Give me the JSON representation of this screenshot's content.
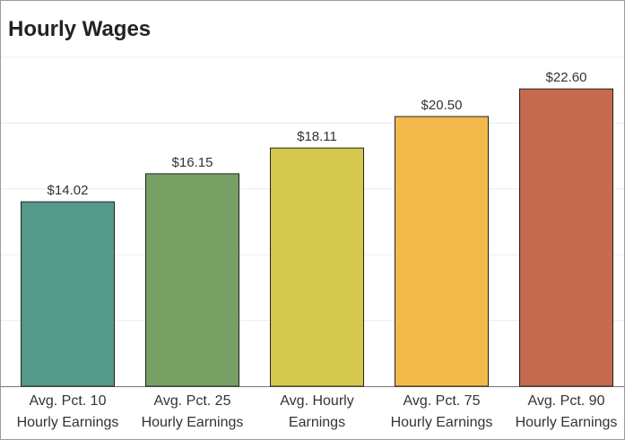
{
  "chart_data": {
    "type": "bar",
    "title": "Hourly Wages",
    "categories": [
      "Avg. Pct. 10 Hourly Earnings",
      "Avg. Pct. 25 Hourly Earnings",
      "Avg. Hourly Earnings",
      "Avg. Pct. 75 Hourly Earnings",
      "Avg. Pct. 90 Hourly Earnings"
    ],
    "values": [
      14.02,
      16.15,
      18.11,
      20.5,
      22.6
    ],
    "value_labels": [
      "$14.02",
      "$16.15",
      "$18.11",
      "$20.50",
      "$22.60"
    ],
    "colors": [
      "#55998a",
      "#78a064",
      "#d4c94c",
      "#f3b94b",
      "#c46a4f"
    ],
    "ylim": [
      0,
      25
    ],
    "yticks": [
      0,
      5,
      10,
      15,
      20,
      25
    ],
    "grid": true
  }
}
